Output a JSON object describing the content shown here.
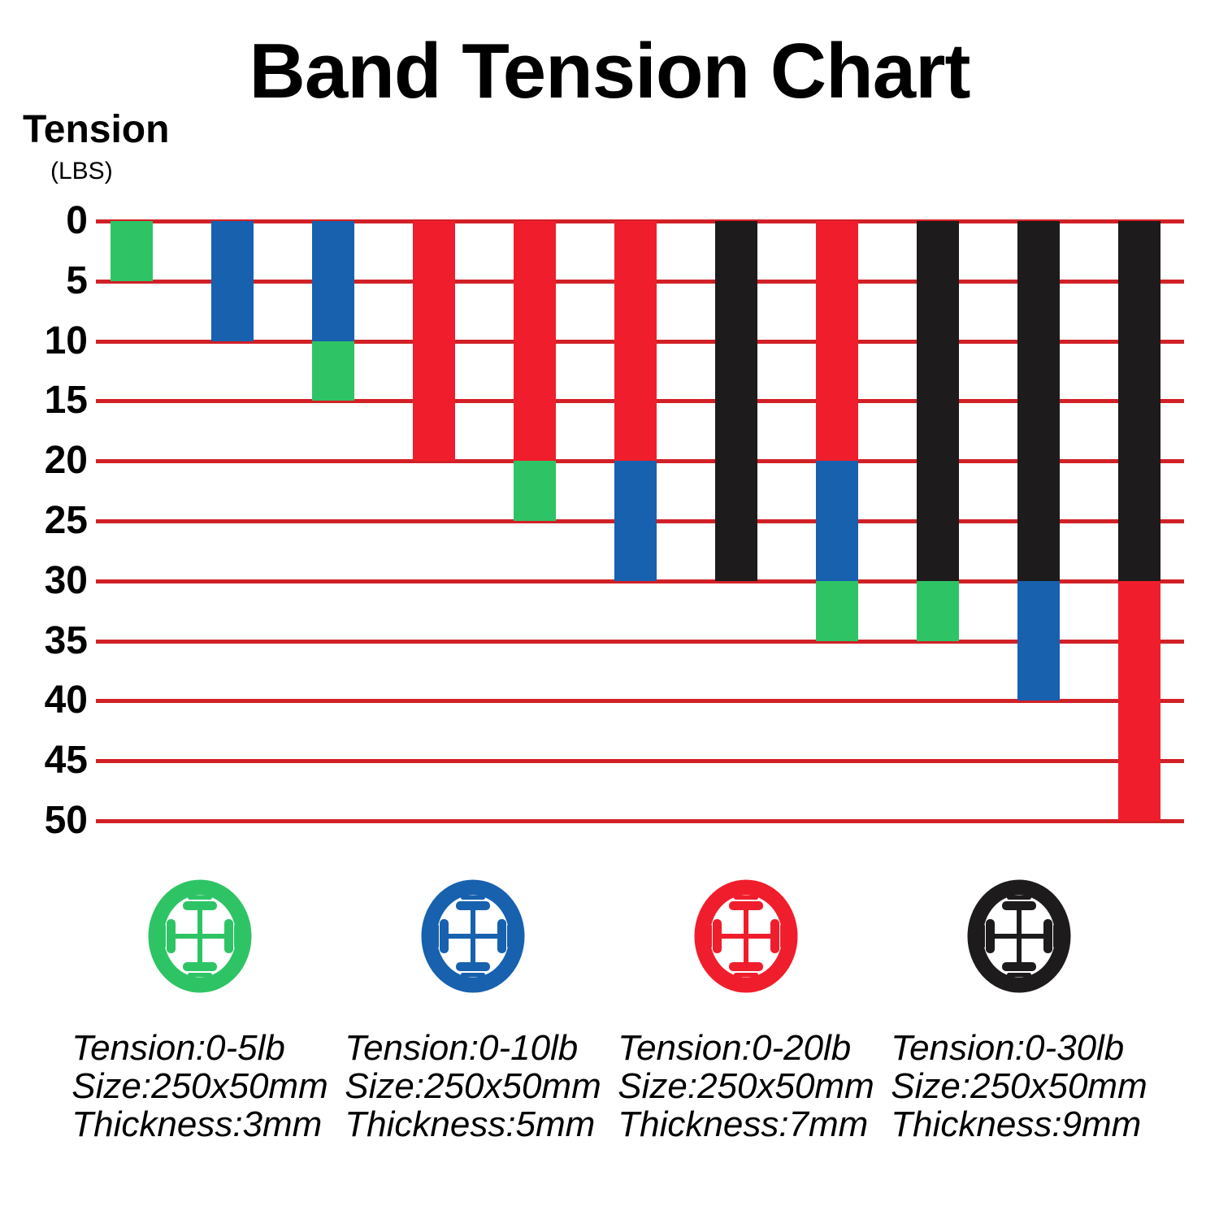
{
  "title": "Band Tension Chart",
  "y_axis": {
    "label": "Tension",
    "unit": "(LBS)",
    "ticks": [
      0,
      5,
      10,
      15,
      20,
      25,
      30,
      35,
      40,
      45,
      50
    ]
  },
  "colors": {
    "green": "#2EC466",
    "blue": "#1761AE",
    "red": "#F01E2C",
    "black": "#1D1B1C",
    "gridline": "#D22027",
    "text": "#000000",
    "background": "#FFFFFF"
  },
  "chart_data": {
    "type": "bar",
    "stacked": true,
    "orientation": "vertical-downward",
    "title": "Band Tension Chart",
    "ylabel": "Tension (LBS)",
    "ylim": [
      0,
      50
    ],
    "grid": "horizontal-red-lines",
    "legend_position": "bottom",
    "bars": [
      {
        "segments": [
          {
            "band": "green",
            "from": 0,
            "to": 5
          }
        ]
      },
      {
        "segments": [
          {
            "band": "blue",
            "from": 0,
            "to": 10
          }
        ]
      },
      {
        "segments": [
          {
            "band": "blue",
            "from": 0,
            "to": 10
          },
          {
            "band": "green",
            "from": 10,
            "to": 15
          }
        ]
      },
      {
        "segments": [
          {
            "band": "red",
            "from": 0,
            "to": 20
          }
        ]
      },
      {
        "segments": [
          {
            "band": "red",
            "from": 0,
            "to": 20
          },
          {
            "band": "green",
            "from": 20,
            "to": 25
          }
        ]
      },
      {
        "segments": [
          {
            "band": "red",
            "from": 0,
            "to": 20
          },
          {
            "band": "blue",
            "from": 20,
            "to": 30
          }
        ]
      },
      {
        "segments": [
          {
            "band": "black",
            "from": 0,
            "to": 30
          }
        ]
      },
      {
        "segments": [
          {
            "band": "red",
            "from": 0,
            "to": 20
          },
          {
            "band": "blue",
            "from": 20,
            "to": 30
          },
          {
            "band": "green",
            "from": 30,
            "to": 35
          }
        ]
      },
      {
        "segments": [
          {
            "band": "black",
            "from": 0,
            "to": 30
          },
          {
            "band": "green",
            "from": 30,
            "to": 35
          }
        ]
      },
      {
        "segments": [
          {
            "band": "black",
            "from": 0,
            "to": 30
          },
          {
            "band": "blue",
            "from": 30,
            "to": 40
          }
        ]
      },
      {
        "segments": [
          {
            "band": "black",
            "from": 0,
            "to": 30
          },
          {
            "band": "red",
            "from": 30,
            "to": 50
          }
        ]
      }
    ]
  },
  "legend": [
    {
      "band": "green",
      "lines": [
        "Tension:0-5lb",
        "Size:250x50mm",
        "Thickness:3mm"
      ]
    },
    {
      "band": "blue",
      "lines": [
        "Tension:0-10lb",
        "Size:250x50mm",
        "Thickness:5mm"
      ]
    },
    {
      "band": "red",
      "lines": [
        "Tension:0-20lb",
        "Size:250x50mm",
        "Thickness:7mm"
      ]
    },
    {
      "band": "black",
      "lines": [
        "Tension:0-30lb",
        "Size:250x50mm",
        "Thickness:9mm"
      ]
    }
  ]
}
